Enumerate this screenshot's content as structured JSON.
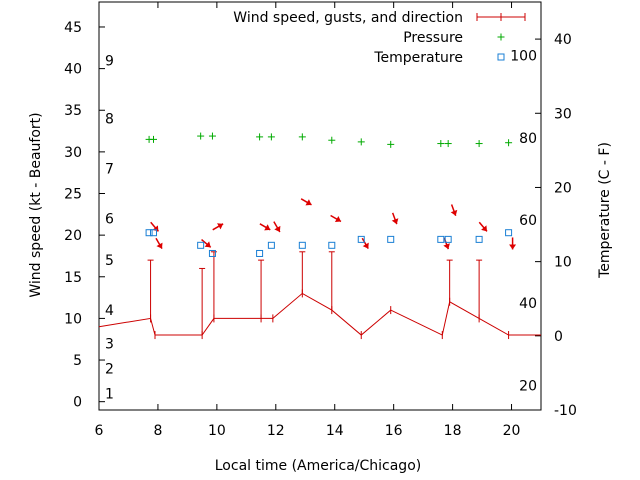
{
  "chart_data": {
    "type": "line",
    "title": "",
    "xlabel": "Local time (America/Chicago)",
    "ylabel": "Wind speed (kt - Beaufort)",
    "y2label": "Temperature (C - F)",
    "xlim": [
      6,
      21
    ],
    "ylim": [
      -1,
      48
    ],
    "y2lim": [
      -10,
      45
    ],
    "x_ticks": [
      "6",
      "8",
      "10",
      "12",
      "14",
      "16",
      "18",
      "20"
    ],
    "x_tick_values": [
      6,
      8,
      10,
      12,
      14,
      16,
      18,
      20
    ],
    "y_ticks": [
      "0",
      "5",
      "10",
      "15",
      "20",
      "25",
      "30",
      "35",
      "40",
      "45"
    ],
    "y_tick_values": [
      0,
      5,
      10,
      15,
      20,
      25,
      30,
      35,
      40,
      45
    ],
    "y2_ticks": [
      "-10",
      "0",
      "10",
      "20",
      "30",
      "40"
    ],
    "y2_tick_values": [
      -10,
      0,
      10,
      20,
      30,
      40
    ],
    "beaufort_labels": [
      {
        "label": "1",
        "kt": 1
      },
      {
        "label": "2",
        "kt": 4
      },
      {
        "label": "3",
        "kt": 7
      },
      {
        "label": "4",
        "kt": 11
      },
      {
        "label": "5",
        "kt": 17
      },
      {
        "label": "6",
        "kt": 22
      },
      {
        "label": "7",
        "kt": 28
      },
      {
        "label": "8",
        "kt": 34
      },
      {
        "label": "9",
        "kt": 41
      }
    ],
    "fahrenheit_labels": [
      {
        "label": "20",
        "c": -6.7
      },
      {
        "label": "40",
        "c": 4.4
      },
      {
        "label": "60",
        "c": 15.6
      },
      {
        "label": "80",
        "c": 26.7
      },
      {
        "label": "100",
        "c": 37.8
      }
    ],
    "legend": {
      "position": "top-right",
      "entries": [
        {
          "label": "Wind speed, gusts, and direction",
          "color": "#cc0000",
          "marker": "errorbar"
        },
        {
          "label": "Pressure",
          "color": "#00aa00",
          "marker": "plus"
        },
        {
          "label": "Temperature",
          "color": "#1a7fd4",
          "marker": "square"
        }
      ]
    },
    "series": [
      {
        "name": "Wind speed, gusts, and direction",
        "axis": "y",
        "x": [
          6.0,
          7.75,
          7.9,
          9.5,
          9.9,
          11.5,
          11.9,
          12.9,
          13.9,
          14.9,
          15.9,
          17.65,
          17.9,
          18.9,
          19.9,
          21.0
        ],
        "y": [
          9,
          10,
          8,
          8,
          10,
          10,
          10,
          13,
          11,
          8,
          11,
          8,
          12,
          10,
          8,
          8
        ],
        "gusts": [
          null,
          17,
          null,
          16,
          18,
          17,
          null,
          18,
          18,
          null,
          null,
          null,
          17,
          17,
          null,
          null
        ],
        "direction_deg": [
          null,
          320,
          330,
          310,
          240,
          300,
          330,
          300,
          300,
          330,
          340,
          340,
          340,
          320,
          0,
          null
        ]
      },
      {
        "name": "Pressure",
        "axis": "y",
        "x": [
          7.7,
          7.85,
          9.45,
          9.85,
          11.45,
          11.85,
          12.9,
          13.9,
          14.9,
          15.9,
          17.6,
          17.85,
          18.9,
          19.9
        ],
        "y": [
          31.5,
          31.5,
          31.9,
          31.9,
          31.8,
          31.8,
          31.8,
          31.4,
          31.2,
          30.9,
          31.0,
          31.0,
          31.0,
          31.1
        ]
      },
      {
        "name": "Temperature",
        "axis": "y2",
        "x": [
          7.7,
          7.85,
          9.45,
          9.85,
          11.45,
          11.85,
          12.9,
          13.9,
          14.9,
          15.9,
          17.6,
          17.85,
          18.9,
          19.9
        ],
        "y": [
          13.9,
          13.9,
          12.2,
          11.1,
          11.1,
          12.2,
          12.2,
          12.2,
          13.0,
          13.0,
          13.0,
          13.0,
          13.0,
          13.9
        ]
      }
    ]
  }
}
